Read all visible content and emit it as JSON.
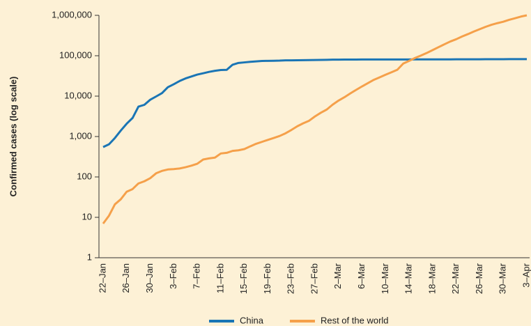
{
  "chart_data": {
    "type": "line",
    "log_scale": true,
    "ylabel": "Confirmed cases (log scale)",
    "categories": [
      "22–Jan",
      null,
      null,
      null,
      "26–Jan",
      null,
      null,
      null,
      "30–Jan",
      null,
      null,
      null,
      "3–Feb",
      null,
      null,
      null,
      "7–Feb",
      null,
      null,
      null,
      "11–Feb",
      null,
      null,
      null,
      "15–Feb",
      null,
      null,
      null,
      "19–Feb",
      null,
      null,
      null,
      "23–Feb",
      null,
      null,
      null,
      "27–Feb",
      null,
      null,
      null,
      "2–Mar",
      null,
      null,
      null,
      "6–Mar",
      null,
      null,
      null,
      "10–Mar",
      null,
      null,
      null,
      "14–Mar",
      null,
      null,
      null,
      "18–Mar",
      null,
      null,
      null,
      "22–Mar",
      null,
      null,
      null,
      "26–Mar",
      null,
      null,
      null,
      "30–Mar",
      null,
      null,
      null,
      "3–Apr"
    ],
    "series": [
      {
        "name": "China",
        "color": "#1a75b5",
        "values": [
          548,
          643,
          920,
          1406,
          2075,
          2877,
          5509,
          6087,
          8141,
          9802,
          11891,
          16630,
          19716,
          23707,
          27440,
          30587,
          34110,
          36814,
          39829,
          42354,
          44386,
          44759,
          59895,
          66358,
          68413,
          70513,
          72434,
          74211,
          74619,
          75077,
          75550,
          77001,
          77022,
          77241,
          77754,
          78166,
          78600,
          78928,
          79356,
          79932,
          80136,
          80261,
          80386,
          80537,
          80690,
          80770,
          80823,
          80860,
          80887,
          80921,
          80932,
          80945,
          80977,
          81003,
          81033,
          81058,
          81102,
          81156,
          81250,
          81305,
          81435,
          81498,
          81591,
          81661,
          81782,
          81897,
          81999,
          82122,
          82198,
          82279,
          82361,
          82432,
          82511
        ]
      },
      {
        "name": "Rest of the world",
        "color": "#f5a04a",
        "values": [
          7,
          11,
          21,
          28,
          43,
          50,
          69,
          78,
          93,
          123,
          141,
          153,
          156,
          162,
          174,
          190,
          212,
          270,
          288,
          301,
          381,
          395,
          441,
          457,
          489,
          572,
          661,
          739,
          827,
          923,
          1033,
          1203,
          1456,
          1797,
          2125,
          2459,
          3146,
          3886,
          4657,
          6154,
          7758,
          9385,
          11666,
          14310,
          17425,
          20988,
          25300,
          29208,
          33814,
          38982,
          45021,
          64022,
          74740,
          88000,
          101000,
          117000,
          138000,
          163000,
          192000,
          225000,
          256000,
          299000,
          343000,
          397000,
          454000,
          519000,
          584000,
          640000,
          694000,
          774000,
          848000,
          932000,
          1000000
        ]
      }
    ],
    "ylim": [
      1,
      1000000
    ],
    "yticks": [
      1,
      10,
      100,
      {
        "value": 1000,
        "label": "1,000"
      },
      {
        "value": 10000,
        "label": "10,000"
      },
      {
        "value": 100000,
        "label": "100,000"
      },
      {
        "value": 1000000,
        "label": "1,000,000"
      }
    ],
    "legend": "bottom"
  }
}
